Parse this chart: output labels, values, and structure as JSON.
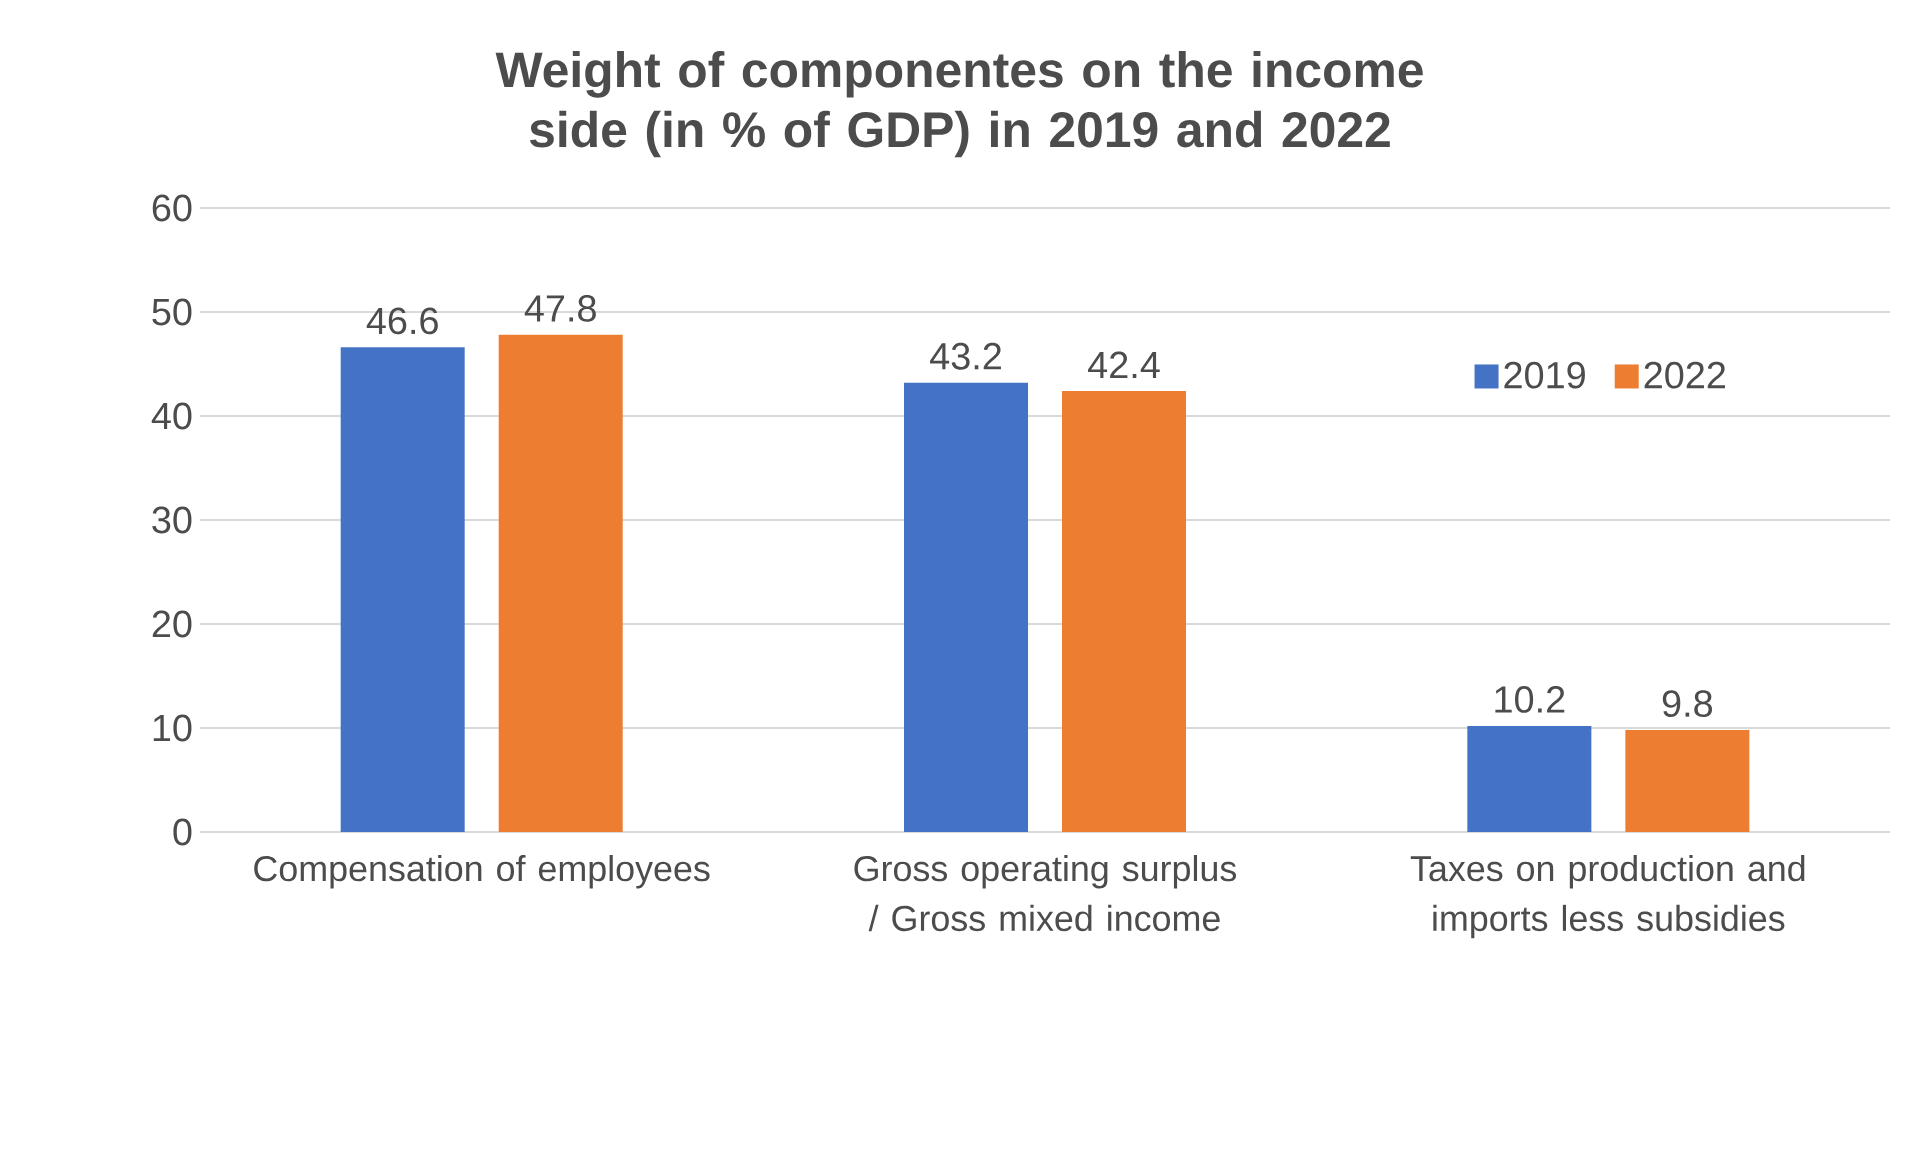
{
  "chart_data": {
    "type": "bar",
    "title": "Weight of componentes on the income side (in % of GDP) in 2019 and 2022",
    "categories": [
      "Compensation of employees",
      "Gross operating surplus / Gross mixed income",
      "Taxes on production and imports less subsidies"
    ],
    "series": [
      {
        "name": "2019",
        "color": "#4472c4",
        "values": [
          46.6,
          43.2,
          10.2
        ]
      },
      {
        "name": "2022",
        "color": "#ed7d31",
        "values": [
          47.8,
          42.4,
          9.8
        ]
      }
    ],
    "ylim": [
      0,
      60
    ],
    "yticks": [
      0,
      10,
      20,
      30,
      40,
      50,
      60
    ],
    "grid": "y",
    "legend": "right",
    "data_labels": true
  }
}
